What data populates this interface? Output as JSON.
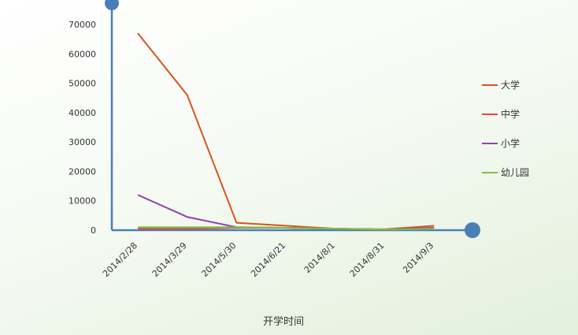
{
  "chart_data": {
    "type": "line",
    "title": "",
    "xlabel": "开学时间",
    "ylabel": "",
    "ylim": [
      0,
      80000
    ],
    "yticks": [
      0,
      10000,
      20000,
      30000,
      40000,
      50000,
      60000,
      70000
    ],
    "ytick_labels": [
      "0",
      "10000",
      "20000",
      "30000",
      "40000",
      "50000",
      "60000",
      "70000"
    ],
    "categories": [
      "2014/2/28",
      "2014/3/29",
      "2014/5/30",
      "2014/6/21",
      "2014/8/1",
      "2014/8/31",
      "2014/9/3"
    ],
    "series": [
      {
        "name": "大学",
        "color": "#d9531e",
        "values": [
          67000,
          46000,
          2500,
          1500,
          500,
          300,
          1500
        ]
      },
      {
        "name": "中学",
        "color": "#e8453c",
        "values": [
          500,
          500,
          800,
          800,
          500,
          200,
          800
        ]
      },
      {
        "name": "小学",
        "color": "#8e44ad",
        "values": [
          12000,
          4500,
          1000,
          800,
          500,
          200,
          800
        ]
      },
      {
        "name": "幼儿园",
        "color": "#7dc242",
        "values": [
          1000,
          1000,
          1000,
          800,
          500,
          200,
          500
        ]
      }
    ],
    "grid": false,
    "legend": "right",
    "axis_color": "#4a7fb5"
  }
}
